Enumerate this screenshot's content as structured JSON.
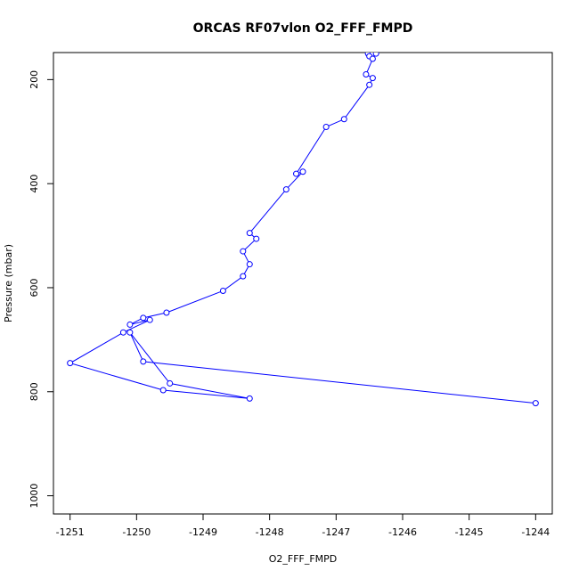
{
  "chart_data": {
    "type": "line",
    "title": "ORCAS RF07vlon O2_FFF_FMPD",
    "xlabel": "O2_FFF_FMPD",
    "ylabel": "Pressure (mbar)",
    "xlim": [
      -1251.25,
      -1243.75
    ],
    "ylim": [
      1035,
      148
    ],
    "y_reversed": true,
    "x_ticks": [
      -1251,
      -1250,
      -1249,
      -1248,
      -1247,
      -1246,
      -1245,
      -1244
    ],
    "x_tick_labels": [
      "-1251",
      "-1250",
      "-1249",
      "-1248",
      "-1247",
      "-1246",
      "-1245",
      "-1244"
    ],
    "y_ticks": [
      200,
      400,
      600,
      800,
      1000
    ],
    "y_tick_labels": [
      "200",
      "400",
      "600",
      "800",
      "1000"
    ],
    "grid": false,
    "series": [
      {
        "color": "#0000ff",
        "marker": "open-circle",
        "points": [
          [
            -1246.6,
            120
          ],
          [
            -1246.52,
            150
          ],
          [
            -1246.45,
            150
          ],
          [
            -1246.4,
            150
          ],
          [
            -1246.5,
            155
          ],
          [
            -1246.45,
            160
          ],
          [
            -1246.55,
            190
          ],
          [
            -1246.45,
            197
          ],
          [
            -1246.5,
            210
          ],
          [
            -1246.88,
            276
          ],
          [
            -1247.15,
            291
          ],
          [
            -1247.6,
            381
          ],
          [
            -1247.5,
            377
          ],
          [
            -1247.75,
            411
          ],
          [
            -1248.3,
            495
          ],
          [
            -1248.2,
            506
          ],
          [
            -1248.4,
            530
          ],
          [
            -1248.3,
            555
          ],
          [
            -1248.4,
            578
          ],
          [
            -1248.7,
            606
          ],
          [
            -1249.55,
            648
          ],
          [
            -1249.9,
            658
          ],
          [
            -1250.1,
            671
          ],
          [
            -1249.8,
            662
          ],
          [
            -1250.2,
            686
          ],
          [
            -1251.0,
            745
          ],
          [
            -1249.6,
            797
          ],
          [
            -1248.3,
            813
          ],
          [
            -1249.5,
            784
          ],
          [
            -1250.1,
            686
          ],
          [
            -1249.9,
            742
          ],
          [
            -1244.0,
            822
          ]
        ]
      }
    ]
  }
}
